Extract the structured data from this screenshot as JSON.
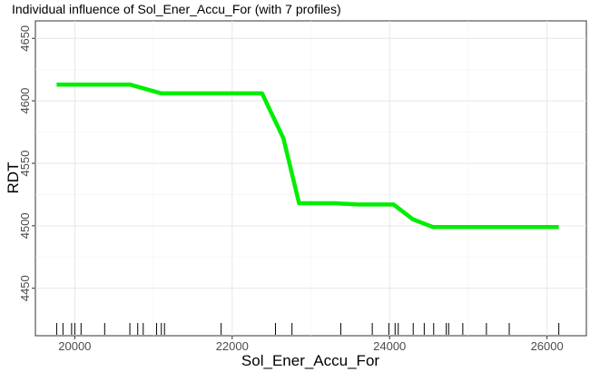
{
  "chart_data": {
    "type": "line",
    "title": "Individual influence of Sol_Ener_Accu_For (with 7 profiles)",
    "xlabel": "Sol_Ener_Accu_For",
    "ylabel": "RDT",
    "xlim": [
      19500,
      26500
    ],
    "ylim": [
      4412,
      4664
    ],
    "x_ticks": [
      20000,
      22000,
      24000,
      26000
    ],
    "y_ticks": [
      4450,
      4500,
      4550,
      4600,
      4650
    ],
    "x_tick_labels": [
      "20000",
      "22000",
      "24000",
      "26000"
    ],
    "y_tick_labels": [
      "4450",
      "4500",
      "4550",
      "4600",
      "4650"
    ],
    "grid": true,
    "series": [
      {
        "color": "#00ee00",
        "x": [
          19770,
          20700,
          21100,
          22380,
          22650,
          22850,
          23300,
          23600,
          24050,
          24300,
          24550,
          26150
        ],
        "y": [
          4613,
          4613,
          4606,
          4606,
          4570,
          4518,
          4518,
          4517,
          4517,
          4505,
          4499,
          4499
        ]
      }
    ],
    "rug": [
      19770,
      19850,
      19960,
      20000,
      20080,
      20380,
      20700,
      20800,
      20870,
      21040,
      21100,
      21140,
      21860,
      22550,
      22760,
      23380,
      23780,
      23990,
      24070,
      24110,
      24300,
      24440,
      24560,
      24720,
      24750,
      24930,
      25230,
      25520,
      26150
    ]
  }
}
